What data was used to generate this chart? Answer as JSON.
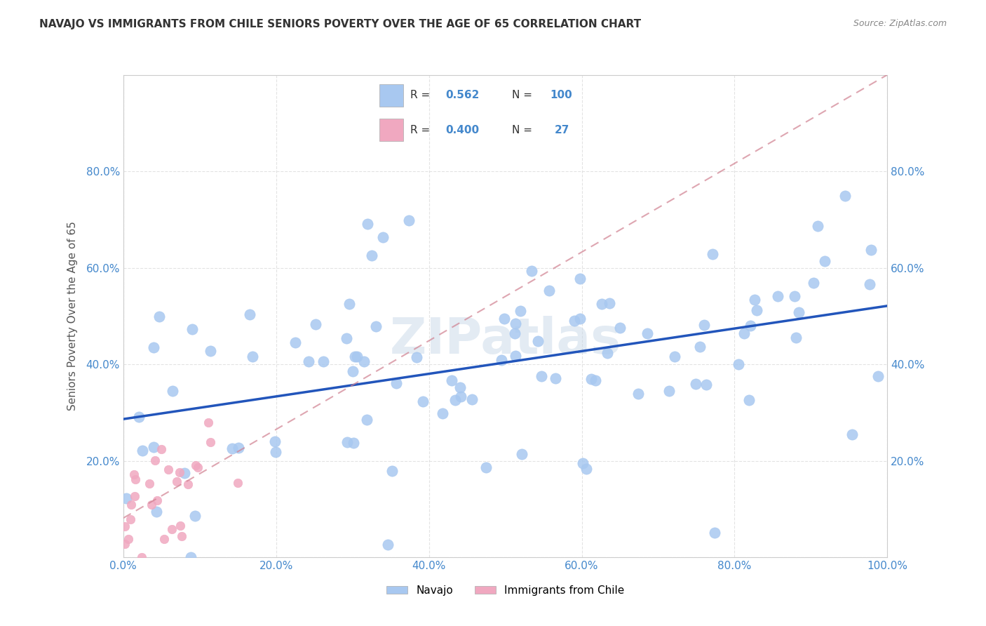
{
  "title": "NAVAJO VS IMMIGRANTS FROM CHILE SENIORS POVERTY OVER THE AGE OF 65 CORRELATION CHART",
  "source": "Source: ZipAtlas.com",
  "ylabel": "Seniors Poverty Over the Age of 65",
  "xlim": [
    0,
    1.0
  ],
  "ylim": [
    0,
    1.0
  ],
  "navajo_R": 0.562,
  "navajo_N": 100,
  "chile_R": 0.4,
  "chile_N": 27,
  "navajo_color": "#a8c8f0",
  "chile_color": "#f0a8c0",
  "navajo_line_color": "#2255bb",
  "chile_line_color": "#d08090",
  "watermark_color": "#c8d8e8",
  "background_color": "#ffffff",
  "grid_color": "#dddddd",
  "title_color": "#333333",
  "axis_label_color": "#555555",
  "tick_label_color": "#4488cc",
  "legend_R_color": "#4488cc",
  "legend_N_color": "#4488cc"
}
